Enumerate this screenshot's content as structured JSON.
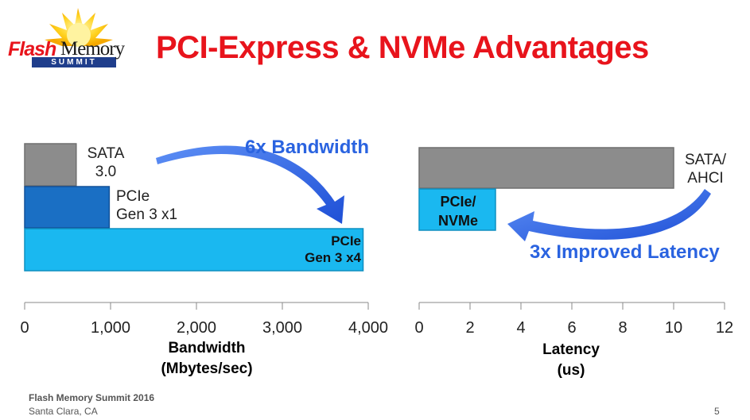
{
  "title": "PCI-Express & NVMe Advantages",
  "logo": {
    "word1": "Flash",
    "word2": "Memory",
    "word3": "SUMMIT"
  },
  "footer": {
    "line1": "Flash Memory Summit 2016",
    "line2": "Santa Clara, CA",
    "page": "5"
  },
  "colors": {
    "title": "#e8141c",
    "gray_bar": "#8c8c8c",
    "dark_blue_bar": "#1a6fc4",
    "light_blue_bar": "#1ab8f0",
    "callout": "#2a63e0"
  },
  "chart_data": [
    {
      "type": "bar",
      "orientation": "horizontal",
      "categories": [
        "SATA 3.0",
        "PCIe Gen 3 x1",
        "PCIe Gen 3 x4"
      ],
      "values": [
        600,
        985,
        3940
      ],
      "labels": [
        [
          "SATA",
          "3.0"
        ],
        [
          "PCIe",
          "Gen 3 x1"
        ],
        [
          "PCIe",
          "Gen 3 x4"
        ]
      ],
      "xlabel": [
        "Bandwidth",
        "(Mbytes/sec)"
      ],
      "xlim": [
        0,
        4000
      ],
      "ticks": [
        0,
        1000,
        2000,
        3000,
        4000
      ],
      "tick_labels": [
        "0",
        "1,000",
        "2,000",
        "3,000",
        "4,000"
      ],
      "annotation": "6x Bandwidth",
      "grid": false
    },
    {
      "type": "bar",
      "orientation": "horizontal",
      "categories": [
        "SATA/AHCI",
        "PCIe/NVMe"
      ],
      "values": [
        10,
        3
      ],
      "labels": [
        [
          "SATA/",
          "AHCI"
        ],
        [
          "PCIe/",
          "NVMe"
        ]
      ],
      "xlabel": [
        "Latency",
        "(us)"
      ],
      "xlim": [
        0,
        12
      ],
      "ticks": [
        0,
        2,
        4,
        6,
        8,
        10,
        12
      ],
      "tick_labels": [
        "0",
        "2",
        "4",
        "6",
        "8",
        "10",
        "12"
      ],
      "annotation": "3x Improved Latency",
      "grid": false
    }
  ]
}
